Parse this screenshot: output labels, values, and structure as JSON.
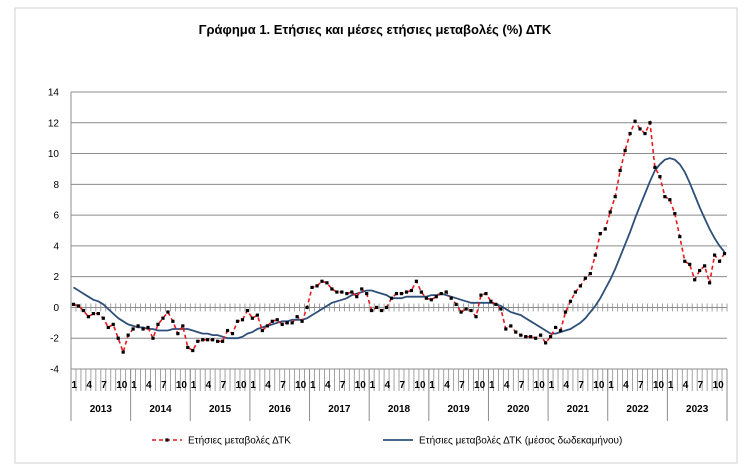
{
  "chart_data": {
    "type": "line",
    "title": "Γράφημα 1. Ετήσιες και μέσες ετήσιες μεταβολές (%) ΔΤΚ",
    "xlabel": "",
    "ylabel": "",
    "ylim": [
      -4,
      14
    ],
    "yticks": [
      "14",
      "12",
      "10",
      "8",
      "6",
      "4",
      "2",
      "0",
      "-2",
      "-4"
    ],
    "month_ticks": [
      "1",
      "4",
      "7",
      "10"
    ],
    "years": [
      "2013",
      "2014",
      "2015",
      "2016",
      "2017",
      "2018",
      "2019",
      "2020",
      "2021",
      "2022",
      "2023"
    ],
    "grid": true,
    "legend_position": "bottom",
    "series": [
      {
        "name": "Ετήσιες μεταβολές ΔΤΚ",
        "color": "#e8191d",
        "style": "dashed-with-markers",
        "values": [
          0.2,
          0.1,
          -0.2,
          -0.6,
          -0.4,
          -0.4,
          -0.7,
          -1.3,
          -1.1,
          -2.0,
          -2.9,
          -1.8,
          -1.4,
          -1.2,
          -1.4,
          -1.3,
          -2.0,
          -1.1,
          -0.7,
          -0.3,
          -0.9,
          -1.7,
          -1.2,
          -2.6,
          -2.8,
          -2.2,
          -2.1,
          -2.1,
          -2.1,
          -2.2,
          -2.2,
          -1.5,
          -1.7,
          -0.9,
          -0.8,
          -0.2,
          -0.7,
          -0.5,
          -1.5,
          -1.2,
          -0.9,
          -0.8,
          -1.1,
          -1.0,
          -1.0,
          -0.6,
          -0.9,
          0.0,
          1.3,
          1.4,
          1.7,
          1.6,
          1.2,
          1.0,
          1.0,
          0.9,
          1.0,
          0.7,
          1.2,
          0.9,
          -0.2,
          0.0,
          -0.2,
          0.0,
          0.6,
          0.9,
          0.9,
          1.0,
          1.1,
          1.7,
          1.0,
          0.6,
          0.5,
          0.7,
          0.9,
          1.0,
          0.6,
          0.2,
          -0.3,
          -0.1,
          -0.2,
          -0.6,
          0.8,
          0.9,
          0.4,
          0.2,
          -0.1,
          -1.4,
          -1.2,
          -1.6,
          -1.8,
          -1.9,
          -1.9,
          -2.0,
          -1.8,
          -2.3,
          -1.9,
          -1.3,
          -1.5,
          -0.3,
          0.4,
          1.0,
          1.4,
          1.9,
          2.2,
          3.4,
          4.8,
          5.1,
          6.2,
          7.2,
          8.9,
          10.2,
          11.3,
          12.1,
          11.6,
          11.3,
          12.0,
          9.1,
          8.5,
          7.2,
          7.0,
          6.1,
          4.6,
          3.0,
          2.8,
          1.8,
          2.4,
          2.7,
          1.6,
          3.4,
          3.0,
          3.5
        ]
      },
      {
        "name": "Ετήσιες μεταβολές ΔΤΚ (μέσος δωδεκαμήνου)",
        "color": "#2e4f7a",
        "style": "solid",
        "values": [
          1.3,
          1.1,
          0.9,
          0.7,
          0.5,
          0.4,
          0.2,
          -0.1,
          -0.4,
          -0.7,
          -0.9,
          -1.1,
          -1.2,
          -1.3,
          -1.3,
          -1.4,
          -1.4,
          -1.5,
          -1.5,
          -1.5,
          -1.4,
          -1.4,
          -1.4,
          -1.4,
          -1.5,
          -1.6,
          -1.7,
          -1.7,
          -1.8,
          -1.8,
          -1.9,
          -2.0,
          -2.0,
          -2.0,
          -1.9,
          -1.7,
          -1.6,
          -1.4,
          -1.3,
          -1.2,
          -1.1,
          -1.0,
          -0.9,
          -0.9,
          -0.8,
          -0.8,
          -0.8,
          -0.7,
          -0.5,
          -0.3,
          -0.1,
          0.1,
          0.3,
          0.4,
          0.5,
          0.6,
          0.8,
          0.9,
          1.0,
          1.1,
          1.1,
          1.0,
          0.9,
          0.8,
          0.6,
          0.6,
          0.6,
          0.7,
          0.7,
          0.7,
          0.7,
          0.7,
          0.8,
          0.8,
          0.9,
          0.8,
          0.7,
          0.6,
          0.5,
          0.4,
          0.3,
          0.3,
          0.3,
          0.3,
          0.3,
          0.2,
          0.1,
          -0.1,
          -0.3,
          -0.4,
          -0.5,
          -0.7,
          -0.9,
          -1.1,
          -1.3,
          -1.5,
          -1.7,
          -1.7,
          -1.6,
          -1.5,
          -1.4,
          -1.2,
          -1.0,
          -0.7,
          -0.3,
          0.1,
          0.6,
          1.2,
          1.8,
          2.5,
          3.3,
          4.1,
          4.9,
          5.8,
          6.6,
          7.4,
          8.2,
          8.9,
          9.3,
          9.6,
          9.7,
          9.6,
          9.3,
          8.8,
          8.1,
          7.3,
          6.5,
          5.8,
          5.1,
          4.5,
          4.0,
          3.6
        ]
      }
    ]
  }
}
